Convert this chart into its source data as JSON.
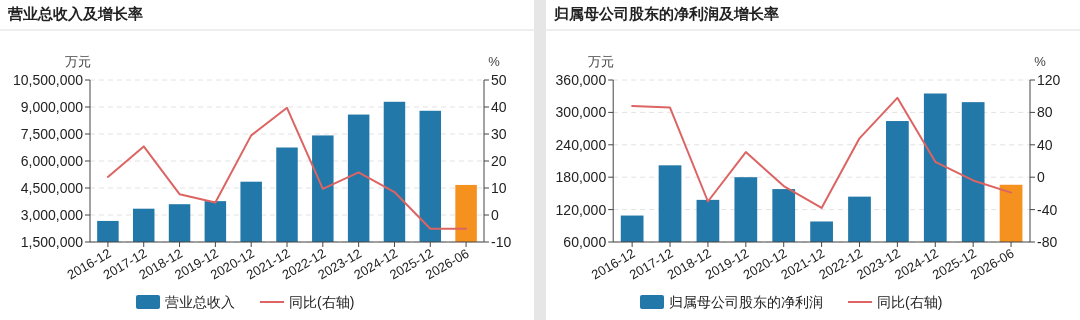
{
  "chart_data": [
    {
      "type": "bar",
      "title": "营业总收入及增长率",
      "ylabel": "万元",
      "y2label": "%",
      "categories": [
        "2016-12",
        "2017-12",
        "2018-12",
        "2019-12",
        "2020-12",
        "2021-12",
        "2022-12",
        "2023-12",
        "2024-12",
        "2025-12",
        "2026-06"
      ],
      "series": [
        {
          "name": "营业总收入",
          "color": "#2278a8",
          "colors": [
            "#2278a8",
            "#2278a8",
            "#2278a8",
            "#2278a8",
            "#2278a8",
            "#2278a8",
            "#2278a8",
            "#2278a8",
            "#2278a8",
            "#2278a8",
            "#f5911e"
          ],
          "values": [
            2670000,
            3350000,
            3600000,
            3770000,
            4850000,
            6750000,
            7420000,
            8580000,
            9290000,
            8790000,
            4670000
          ]
        },
        {
          "name": "同比(右轴)",
          "type": "line",
          "axis": "y2",
          "color": "#dc6462",
          "values": [
            14.1,
            25.4,
            7.7,
            4.6,
            29.5,
            39.7,
            9.7,
            15.8,
            8.5,
            -5.1,
            -5.1
          ]
        }
      ],
      "ylim": [
        1500000,
        10500000
      ],
      "yticks": [
        {
          "value": 1500000,
          "label": "1,500,000"
        },
        {
          "value": 3000000,
          "label": "3,000,000"
        },
        {
          "value": 4500000,
          "label": "4,500,000"
        },
        {
          "value": 6000000,
          "label": "6,000,000"
        },
        {
          "value": 7500000,
          "label": "7,500,000"
        },
        {
          "value": 9000000,
          "label": "9,000,000"
        },
        {
          "value": 10500000,
          "label": "10,500,000"
        }
      ],
      "y2lim": [
        -10,
        50
      ],
      "y2ticks": [
        -10,
        0,
        10,
        20,
        30,
        40,
        50
      ],
      "grid": "y",
      "legend": "bottom"
    },
    {
      "type": "bar",
      "title": "归属母公司股东的净利润及增长率",
      "ylabel": "万元",
      "y2label": "%",
      "categories": [
        "2016-12",
        "2017-12",
        "2018-12",
        "2019-12",
        "2020-12",
        "2021-12",
        "2022-12",
        "2023-12",
        "2024-12",
        "2025-12",
        "2026-06"
      ],
      "series": [
        {
          "name": "归属母公司股东的净利润",
          "color": "#2278a8",
          "colors": [
            "#2278a8",
            "#2278a8",
            "#2278a8",
            "#2278a8",
            "#2278a8",
            "#2278a8",
            "#2278a8",
            "#2278a8",
            "#2278a8",
            "#2278a8",
            "#f5911e"
          ],
          "values": [
            109000,
            202000,
            138000,
            180000,
            158000,
            98000,
            144000,
            284000,
            335000,
            319000,
            166000
          ]
        },
        {
          "name": "同比(右轴)",
          "type": "line",
          "axis": "y2",
          "color": "#dc6462",
          "values": [
            88,
            86,
            -30,
            31,
            -11,
            -38,
            48,
            98,
            19,
            -4,
            -19
          ]
        }
      ],
      "ylim": [
        60000,
        360000
      ],
      "yticks": [
        {
          "value": 60000,
          "label": "60,000"
        },
        {
          "value": 120000,
          "label": "120,000"
        },
        {
          "value": 180000,
          "label": "180,000"
        },
        {
          "value": 240000,
          "label": "240,000"
        },
        {
          "value": 300000,
          "label": "300,000"
        },
        {
          "value": 360000,
          "label": "360,000"
        }
      ],
      "y2lim": [
        -80,
        120
      ],
      "y2ticks": [
        -80,
        -40,
        0,
        40,
        80,
        120
      ],
      "grid": "y",
      "legend": "bottom"
    }
  ]
}
